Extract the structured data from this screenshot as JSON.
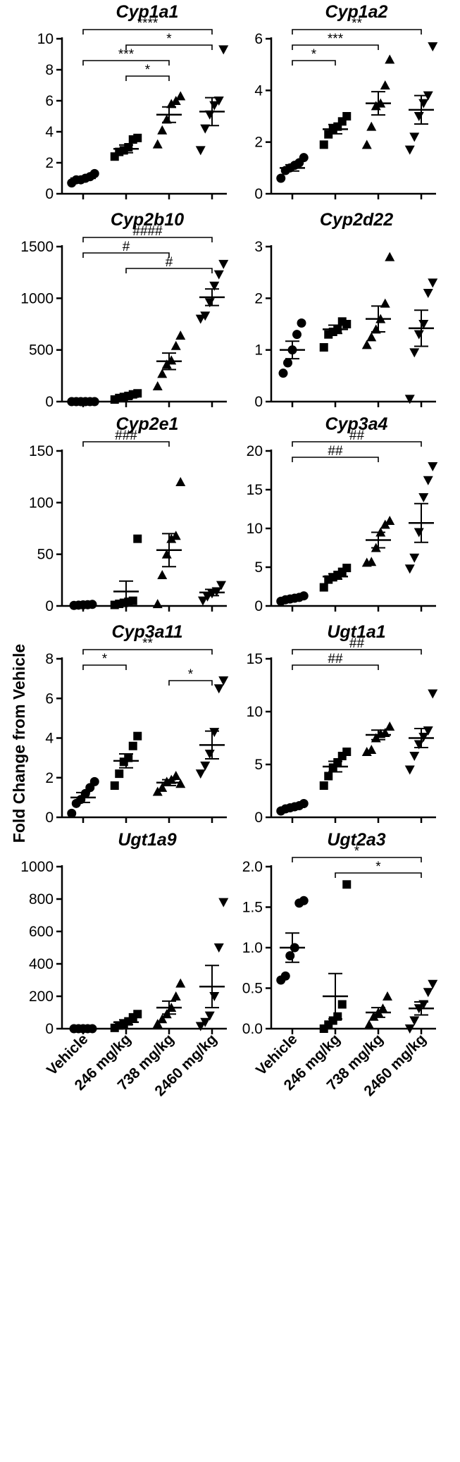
{
  "figure": {
    "ylabel": "Fold Change from Vehicle",
    "categories": [
      "Vehicle",
      "246 mg/kg",
      "738 mg/kg",
      "2460 mg/kg"
    ],
    "markers": [
      "circle",
      "square",
      "triangle",
      "triangle-down"
    ]
  },
  "chart_data": [
    {
      "type": "scatter",
      "title": "Cyp1a1",
      "ylim": [
        0,
        10
      ],
      "yticks": [
        0,
        2,
        4,
        6,
        8,
        10
      ],
      "yticklabels": [
        "0",
        "2",
        "4",
        "6",
        "8",
        "10"
      ],
      "series": [
        {
          "name": "Vehicle",
          "values": [
            0.7,
            0.9,
            0.9,
            1.0,
            1.1,
            1.3
          ],
          "mean": 1.0,
          "sem": 0.1
        },
        {
          "name": "246 mg/kg",
          "values": [
            2.4,
            2.7,
            2.8,
            3.0,
            3.5,
            3.6
          ],
          "mean": 2.9,
          "sem": 0.25
        },
        {
          "name": "738 mg/kg",
          "values": [
            3.2,
            4.1,
            4.8,
            5.8,
            6.0,
            6.3
          ],
          "mean": 5.1,
          "sem": 0.5
        },
        {
          "name": "2460 mg/kg",
          "values": [
            2.8,
            4.2,
            5.1,
            5.7,
            6.0,
            9.3
          ],
          "mean": 5.3,
          "sem": 0.9
        }
      ],
      "brackets": [
        {
          "from": 0,
          "to": 3,
          "label": "****"
        },
        {
          "from": 1,
          "to": 3,
          "label": "*"
        },
        {
          "from": 0,
          "to": 2,
          "label": "***"
        },
        {
          "from": 1,
          "to": 2,
          "label": "*"
        }
      ]
    },
    {
      "type": "scatter",
      "title": "Cyp1a2",
      "ylim": [
        0,
        6
      ],
      "yticks": [
        0,
        2,
        4,
        6
      ],
      "yticklabels": [
        "0",
        "2",
        "4",
        "6"
      ],
      "series": [
        {
          "name": "Vehicle",
          "values": [
            0.6,
            0.9,
            1.0,
            1.1,
            1.2,
            1.4
          ],
          "mean": 1.0,
          "sem": 0.12
        },
        {
          "name": "246 mg/kg",
          "values": [
            1.9,
            2.3,
            2.5,
            2.6,
            2.8,
            3.0
          ],
          "mean": 2.5,
          "sem": 0.18
        },
        {
          "name": "738 mg/kg",
          "values": [
            1.9,
            2.6,
            3.4,
            3.5,
            4.2,
            5.2
          ],
          "mean": 3.5,
          "sem": 0.45
        },
        {
          "name": "2460 mg/kg",
          "values": [
            1.7,
            2.2,
            3.0,
            3.5,
            3.8,
            5.7
          ],
          "mean": 3.25,
          "sem": 0.55
        }
      ],
      "brackets": [
        {
          "from": 0,
          "to": 3,
          "label": "**"
        },
        {
          "from": 0,
          "to": 2,
          "label": "***"
        },
        {
          "from": 0,
          "to": 1,
          "label": "*"
        }
      ]
    },
    {
      "type": "scatter",
      "title": "Cyp2b10",
      "ylim": [
        0,
        1500
      ],
      "yticks": [
        0,
        500,
        1000,
        1500
      ],
      "yticklabels": [
        "0",
        "500",
        "1000",
        "1500"
      ],
      "series": [
        {
          "name": "Vehicle",
          "values": [
            0,
            0,
            0,
            0,
            0,
            0
          ],
          "mean": 0,
          "sem": 0
        },
        {
          "name": "246 mg/kg",
          "values": [
            20,
            35,
            45,
            55,
            70,
            80
          ],
          "mean": 45,
          "sem": 15
        },
        {
          "name": "738 mg/kg",
          "values": [
            150,
            270,
            360,
            400,
            540,
            640
          ],
          "mean": 390,
          "sem": 80
        },
        {
          "name": "2460 mg/kg",
          "values": [
            800,
            830,
            960,
            1120,
            1230,
            1330
          ],
          "mean": 1010,
          "sem": 80
        }
      ],
      "brackets": [
        {
          "from": 0,
          "to": 3,
          "label": "####"
        },
        {
          "from": 0,
          "to": 2,
          "label": "#"
        },
        {
          "from": 1,
          "to": 3,
          "label": "#"
        }
      ]
    },
    {
      "type": "scatter",
      "title": "Cyp2d22",
      "ylim": [
        0,
        3
      ],
      "yticks": [
        0,
        1,
        2,
        3
      ],
      "yticklabels": [
        "0",
        "1",
        "2",
        "3"
      ],
      "series": [
        {
          "name": "Vehicle",
          "values": [
            0.55,
            0.75,
            1.0,
            1.3,
            1.52
          ],
          "mean": 1.0,
          "sem": 0.17
        },
        {
          "name": "246 mg/kg",
          "values": [
            1.05,
            1.3,
            1.35,
            1.4,
            1.55,
            1.5
          ],
          "mean": 1.4,
          "sem": 0.08
        },
        {
          "name": "738 mg/kg",
          "values": [
            1.1,
            1.25,
            1.4,
            1.6,
            1.9,
            2.8
          ],
          "mean": 1.6,
          "sem": 0.25
        },
        {
          "name": "2460 mg/kg",
          "values": [
            0.05,
            0.95,
            1.3,
            1.5,
            2.1,
            2.3
          ],
          "mean": 1.42,
          "sem": 0.35
        }
      ],
      "brackets": []
    },
    {
      "type": "scatter",
      "title": "Cyp2e1",
      "ylim": [
        0,
        150
      ],
      "yticks": [
        0,
        50,
        100,
        150
      ],
      "yticklabels": [
        "0",
        "50",
        "100",
        "150"
      ],
      "series": [
        {
          "name": "Vehicle",
          "values": [
            0.5,
            0.8,
            1.0,
            1.2,
            1.5
          ],
          "mean": 1.0,
          "sem": 0.2
        },
        {
          "name": "246 mg/kg",
          "values": [
            1,
            2,
            3,
            4,
            5,
            65
          ],
          "mean": 14,
          "sem": 10
        },
        {
          "name": "738 mg/kg",
          "values": [
            2,
            30,
            50,
            65,
            68,
            120
          ],
          "mean": 54,
          "sem": 16
        },
        {
          "name": "2460 mg/kg",
          "values": [
            5,
            9,
            12,
            14,
            20
          ],
          "mean": 13,
          "sem": 3
        }
      ],
      "brackets": [
        {
          "from": 0,
          "to": 2,
          "label": "###"
        }
      ]
    },
    {
      "type": "scatter",
      "title": "Cyp3a4",
      "ylim": [
        0,
        20
      ],
      "yticks": [
        0,
        5,
        10,
        15,
        20
      ],
      "yticklabels": [
        "0",
        "5",
        "10",
        "15",
        "20"
      ],
      "series": [
        {
          "name": "Vehicle",
          "values": [
            0.6,
            0.8,
            0.9,
            1.0,
            1.1,
            1.3
          ],
          "mean": 0.95,
          "sem": 0.1
        },
        {
          "name": "246 mg/kg",
          "values": [
            2.4,
            3.4,
            3.7,
            4.0,
            4.4,
            4.9
          ],
          "mean": 3.8,
          "sem": 0.35
        },
        {
          "name": "738 mg/kg",
          "values": [
            5.6,
            5.7,
            7.5,
            9.5,
            10.5,
            11.0
          ],
          "mean": 8.5,
          "sem": 1.0
        },
        {
          "name": "2460 mg/kg",
          "values": [
            4.8,
            6.2,
            9.5,
            14.0,
            16.2,
            18.0
          ],
          "mean": 10.7,
          "sem": 2.5
        }
      ],
      "brackets": [
        {
          "from": 0,
          "to": 3,
          "label": "##"
        },
        {
          "from": 0,
          "to": 2,
          "label": "##"
        }
      ]
    },
    {
      "type": "scatter",
      "title": "Cyp3a11",
      "ylim": [
        0,
        8
      ],
      "yticks": [
        0,
        2,
        4,
        6,
        8
      ],
      "yticklabels": [
        "0",
        "2",
        "4",
        "6",
        "8"
      ],
      "series": [
        {
          "name": "Vehicle",
          "values": [
            0.2,
            0.7,
            0.9,
            1.2,
            1.5,
            1.8
          ],
          "mean": 1.0,
          "sem": 0.25
        },
        {
          "name": "246 mg/kg",
          "values": [
            1.6,
            2.2,
            2.8,
            3.0,
            3.6,
            4.1
          ],
          "mean": 2.85,
          "sem": 0.35
        },
        {
          "name": "738 mg/kg",
          "values": [
            1.3,
            1.5,
            1.8,
            1.9,
            2.1,
            1.7
          ],
          "mean": 1.75,
          "sem": 0.15
        },
        {
          "name": "2460 mg/kg",
          "values": [
            2.2,
            2.6,
            3.2,
            4.3,
            6.5,
            6.9
          ],
          "mean": 3.65,
          "sem": 0.7
        }
      ],
      "brackets": [
        {
          "from": 0,
          "to": 3,
          "label": "**"
        },
        {
          "from": 0,
          "to": 1,
          "label": "*"
        },
        {
          "from": 2,
          "to": 3,
          "label": "*"
        }
      ]
    },
    {
      "type": "scatter",
      "title": "Ugt1a1",
      "ylim": [
        0,
        15
      ],
      "yticks": [
        0,
        5,
        10,
        15
      ],
      "yticklabels": [
        "0",
        "5",
        "10",
        "15"
      ],
      "series": [
        {
          "name": "Vehicle",
          "values": [
            0.6,
            0.8,
            0.9,
            1.0,
            1.1,
            1.3
          ],
          "mean": 0.95,
          "sem": 0.1
        },
        {
          "name": "246 mg/kg",
          "values": [
            3.0,
            3.9,
            4.7,
            5.2,
            5.8,
            6.2
          ],
          "mean": 4.8,
          "sem": 0.5
        },
        {
          "name": "738 mg/kg",
          "values": [
            6.2,
            6.4,
            7.5,
            7.9,
            8.0,
            8.6
          ],
          "mean": 7.8,
          "sem": 0.45
        },
        {
          "name": "2460 mg/kg",
          "values": [
            4.5,
            5.8,
            6.9,
            7.6,
            8.2,
            11.7
          ],
          "mean": 7.5,
          "sem": 0.9
        }
      ],
      "brackets": [
        {
          "from": 0,
          "to": 3,
          "label": "##"
        },
        {
          "from": 0,
          "to": 2,
          "label": "##"
        }
      ]
    },
    {
      "type": "scatter",
      "title": "Ugt1a9",
      "ylim": [
        0,
        1000
      ],
      "yticks": [
        0,
        200,
        400,
        600,
        800,
        1000
      ],
      "yticklabels": [
        "0",
        "200",
        "400",
        "600",
        "800",
        "1000"
      ],
      "series": [
        {
          "name": "Vehicle",
          "values": [
            0,
            0,
            0,
            0,
            0
          ],
          "mean": 0,
          "sem": 0
        },
        {
          "name": "246 mg/kg",
          "values": [
            5,
            20,
            30,
            45,
            70,
            90
          ],
          "mean": 40,
          "sem": 15
        },
        {
          "name": "738 mg/kg",
          "values": [
            30,
            60,
            90,
            130,
            200,
            280
          ],
          "mean": 130,
          "sem": 40
        },
        {
          "name": "2460 mg/kg",
          "values": [
            15,
            40,
            80,
            200,
            500,
            780
          ],
          "mean": 260,
          "sem": 130
        }
      ],
      "brackets": []
    },
    {
      "type": "scatter",
      "title": "Ugt2a3",
      "ylim": [
        0,
        2
      ],
      "yticks": [
        0,
        0.5,
        1,
        1.5,
        2
      ],
      "yticklabels": [
        "0.0",
        "0.5",
        "1.0",
        "1.5",
        "2.0"
      ],
      "series": [
        {
          "name": "Vehicle",
          "values": [
            0.6,
            0.65,
            0.9,
            1.0,
            1.55,
            1.58
          ],
          "mean": 1.0,
          "sem": 0.18
        },
        {
          "name": "246 mg/kg",
          "values": [
            0.0,
            0.05,
            0.1,
            0.15,
            0.3,
            1.78
          ],
          "mean": 0.4,
          "sem": 0.28
        },
        {
          "name": "738 mg/kg",
          "values": [
            0.05,
            0.15,
            0.2,
            0.25,
            0.4
          ],
          "mean": 0.2,
          "sem": 0.06
        },
        {
          "name": "2460 mg/kg",
          "values": [
            0.0,
            0.1,
            0.25,
            0.3,
            0.45,
            0.55
          ],
          "mean": 0.25,
          "sem": 0.08
        }
      ],
      "brackets": [
        {
          "from": 0,
          "to": 3,
          "label": "*"
        },
        {
          "from": 1,
          "to": 3,
          "label": "*"
        }
      ]
    }
  ]
}
